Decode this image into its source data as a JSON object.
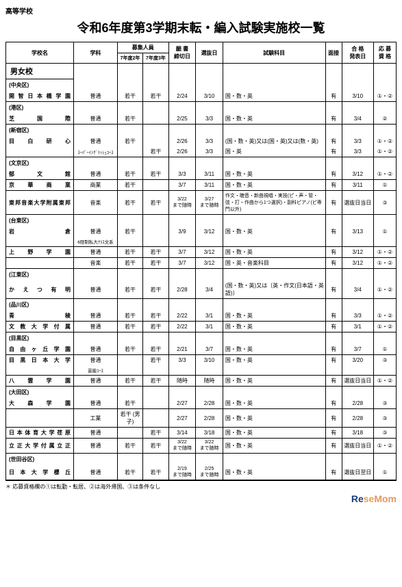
{
  "header_label": "高等学校",
  "title": "令和6年度第3学期末転・編入試験実施校一覧",
  "columns": {
    "school": "学校名",
    "dept": "学科",
    "recruit": "募集人員",
    "recruit_y2": "7年度2年",
    "recruit_y3": "7年度3年",
    "deadline": "願 書\n締切日",
    "examdate": "選抜日",
    "subjects": "試験科目",
    "interview": "面接",
    "announce": "合 格\n発表日",
    "eligibility": "応 募\n資 格"
  },
  "section": "男女校",
  "wards": {
    "chuo": "(中央区)",
    "minato": "(港区)",
    "shinjuku": "(新宿区)",
    "bunkyo": "(文京区)",
    "taito": "(台東区)",
    "koto": "(江東区)",
    "shinagawa": "(品川区)",
    "meguro": "(目黒区)",
    "ota": "(大田区)",
    "setagaya": "(世田谷区)"
  },
  "rows": [
    {
      "school": "開智日本橋学園",
      "dept": "普通",
      "y2": "若干",
      "y3": "若干",
      "dead": "2/24",
      "exam": "3/10",
      "subj": "国・数・英",
      "intv": "有",
      "ann": "3/10",
      "elig": "①・②"
    },
    {
      "school": "芝国際",
      "dept": "普通",
      "y2": "若干",
      "y3": "",
      "dead": "2/25",
      "exam": "3/3",
      "subj": "国・数・英",
      "intv": "有",
      "ann": "3/4",
      "elig": "②"
    },
    {
      "school": "目白研心",
      "dept": "普通",
      "dept2": "ｽｰﾊﾟｰｲﾝｸﾞﾘｯｼｭｺｰｽ",
      "y2": "若干",
      "y3": "",
      "y3b": "若干",
      "dead": "2/26",
      "dead2": "2/26",
      "exam": "3/3",
      "exam2": "3/3",
      "subj": "(国・数・英)又は(国・英)又は(数・英)",
      "subj2": "国・英",
      "intv": "有",
      "intv2": "有",
      "ann": "3/3",
      "ann2": "3/3",
      "elig": "①・②",
      "elig2": "①・②"
    },
    {
      "school": "郁文館",
      "dept": "普通",
      "y2": "若干",
      "y3": "若干",
      "dead": "3/3",
      "exam": "3/11",
      "subj": "国・数・英",
      "intv": "有",
      "ann": "3/12",
      "elig": "①・②"
    },
    {
      "school": "京華商業",
      "dept": "商業",
      "y2": "若干",
      "y3": "",
      "dead": "3/7",
      "exam": "3/11",
      "subj": "国・数・英",
      "intv": "有",
      "ann": "3/11",
      "elig": "①"
    },
    {
      "school": "東邦音楽大学附属東邦",
      "dept": "音楽",
      "y2": "若干",
      "y3": "若干",
      "dead": "3/22\nまで随時",
      "exam": "3/27\nまで随時",
      "subj": "作文・聴音・新曲視唱・実技(ピ・声・管・弦・打・作曲から1つ選択)・副科ピアノ(ピ専門以外)",
      "intv": "有",
      "ann": "選抜日当日",
      "elig": "③"
    },
    {
      "school": "岩倉",
      "dept": "普通",
      "dept2": "6限制私大ｸﾗｽ文系",
      "y2": "若干",
      "y3": "",
      "dead": "3/9",
      "exam": "3/12",
      "subj": "国・数・英",
      "intv": "有",
      "ann": "3/13",
      "elig": "①"
    },
    {
      "school": "上野学園",
      "dept": "普通",
      "y2": "若干",
      "y3": "若干",
      "dead": "3/7",
      "exam": "3/12",
      "subj": "国・数・英",
      "intv": "有",
      "ann": "3/12",
      "elig": "①・②"
    },
    {
      "school": "",
      "dept": "音楽",
      "y2": "若干",
      "y3": "若干",
      "dead": "3/7",
      "exam": "3/12",
      "subj": "国・英・音楽科目",
      "intv": "有",
      "ann": "3/12",
      "elig": "①・②"
    },
    {
      "school": "かえつ有明",
      "dept": "普通",
      "y2": "若干",
      "y3": "若干",
      "dead": "2/28",
      "exam": "3/4",
      "subj": "(国・数・英)又は〔英・作文(日本語・英語)〕",
      "intv": "有",
      "ann": "3/4",
      "elig": "①・②"
    },
    {
      "school": "青稜",
      "dept": "普通",
      "y2": "若干",
      "y3": "若干",
      "dead": "2/22",
      "exam": "3/1",
      "subj": "国・数・英",
      "intv": "有",
      "ann": "3/3",
      "elig": "①・②"
    },
    {
      "school": "文教大学付属",
      "dept": "普通",
      "y2": "若干",
      "y3": "若干",
      "dead": "2/22",
      "exam": "3/1",
      "subj": "国・数・英",
      "intv": "有",
      "ann": "3/1",
      "elig": "①・②"
    },
    {
      "school": "自由ヶ丘学園",
      "dept": "普通",
      "y2": "若干",
      "y3": "若干",
      "dead": "2/21",
      "exam": "3/7",
      "subj": "国・数・英",
      "intv": "有",
      "ann": "3/7",
      "elig": "①"
    },
    {
      "school": "目黒日本大学",
      "dept": "普通",
      "dept2": "芸能ｺｰｽ",
      "y2": "",
      "y3": "若干",
      "dead": "3/3",
      "exam": "3/10",
      "subj": "国・数・英",
      "intv": "有",
      "ann": "3/20",
      "elig": "③"
    },
    {
      "school": "八雲学園",
      "dept": "普通",
      "y2": "若干",
      "y3": "若干",
      "dead": "随時",
      "exam": "随時",
      "subj": "国・数・英",
      "intv": "有",
      "ann": "選抜日当日",
      "elig": "①・②"
    },
    {
      "school": "大森学園",
      "dept": "普通",
      "y2": "若干",
      "y3": "",
      "dead": "2/27",
      "exam": "2/28",
      "subj": "国・数・英",
      "intv": "有",
      "ann": "2/28",
      "elig": "③"
    },
    {
      "school": "",
      "dept": "工業",
      "y2": "若干\n(男子)",
      "y3": "",
      "dead": "2/27",
      "exam": "2/28",
      "subj": "国・数・英",
      "intv": "有",
      "ann": "2/28",
      "elig": "③"
    },
    {
      "school": "日本体育大学荏原",
      "dept": "普通",
      "y2": "",
      "y3": "若干",
      "dead": "3/14",
      "exam": "3/18",
      "subj": "国・数・英",
      "intv": "有",
      "ann": "3/18",
      "elig": "③"
    },
    {
      "school": "立正大学付属立正",
      "dept": "普通",
      "y2": "若干",
      "y3": "若干",
      "dead": "3/22\nまで随時",
      "exam": "3/22\nまで随時",
      "subj": "国・数・英",
      "intv": "有",
      "ann": "選抜日当日",
      "elig": "①・②"
    },
    {
      "school": "日本大学櫻丘",
      "dept": "普通",
      "y2": "若干",
      "y3": "若干",
      "dead": "2/19\nまで随時",
      "exam": "2/25\nまで随時",
      "subj": "国・数・英",
      "intv": "有",
      "ann": "選抜日翌日",
      "elig": "①"
    }
  ],
  "footer_note": "＊ 応募資格欄の①は転勤・転居、②は海外帰国、③は条件なし",
  "logo": {
    "re": "Re",
    "se": "se",
    "mom": "Mom"
  }
}
